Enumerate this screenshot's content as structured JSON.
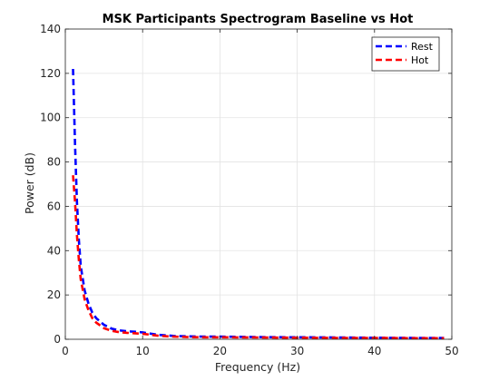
{
  "chart_data": {
    "type": "line",
    "title": "MSK Participants Spectrogram Baseline vs Hot",
    "xlabel": "Frequency (Hz)",
    "ylabel": "Power (dB)",
    "xlim": [
      0,
      50
    ],
    "ylim": [
      0,
      140
    ],
    "xticks": [
      "0",
      "10",
      "20",
      "30",
      "40",
      "50"
    ],
    "yticks": [
      "0",
      "20",
      "40",
      "60",
      "80",
      "100",
      "120",
      "140"
    ],
    "grid": true,
    "legend_position": "top-right",
    "series": [
      {
        "name": "Rest",
        "color": "#0000ff",
        "line_style": "dashed",
        "x": [
          1,
          1.25,
          1.5,
          1.75,
          2,
          2.5,
          3,
          3.5,
          4,
          5,
          6,
          7,
          8,
          9,
          10,
          12,
          14,
          16,
          18,
          20,
          25,
          30,
          35,
          40,
          45,
          49
        ],
        "y": [
          122,
          88,
          62,
          45,
          33,
          22,
          16,
          12,
          9.5,
          6.5,
          4.8,
          4.0,
          3.6,
          3.4,
          3.1,
          2.0,
          1.5,
          1.3,
          1.2,
          1.2,
          1.0,
          0.9,
          0.8,
          0.7,
          0.6,
          0.6
        ]
      },
      {
        "name": "Hot",
        "color": "#ff0000",
        "line_style": "dashed",
        "x": [
          1,
          1.25,
          1.5,
          1.75,
          2,
          2.5,
          3,
          3.5,
          4,
          5,
          6,
          7,
          8,
          9,
          10,
          12,
          14,
          16,
          18,
          20,
          25,
          30,
          35,
          40,
          45,
          49
        ],
        "y": [
          74,
          62,
          47,
          36,
          27,
          18,
          13,
          9.5,
          7.5,
          5.0,
          3.8,
          3.2,
          2.9,
          2.7,
          2.5,
          1.6,
          1.2,
          1.0,
          0.9,
          0.9,
          0.8,
          0.7,
          0.6,
          0.6,
          0.5,
          0.5
        ]
      }
    ]
  }
}
